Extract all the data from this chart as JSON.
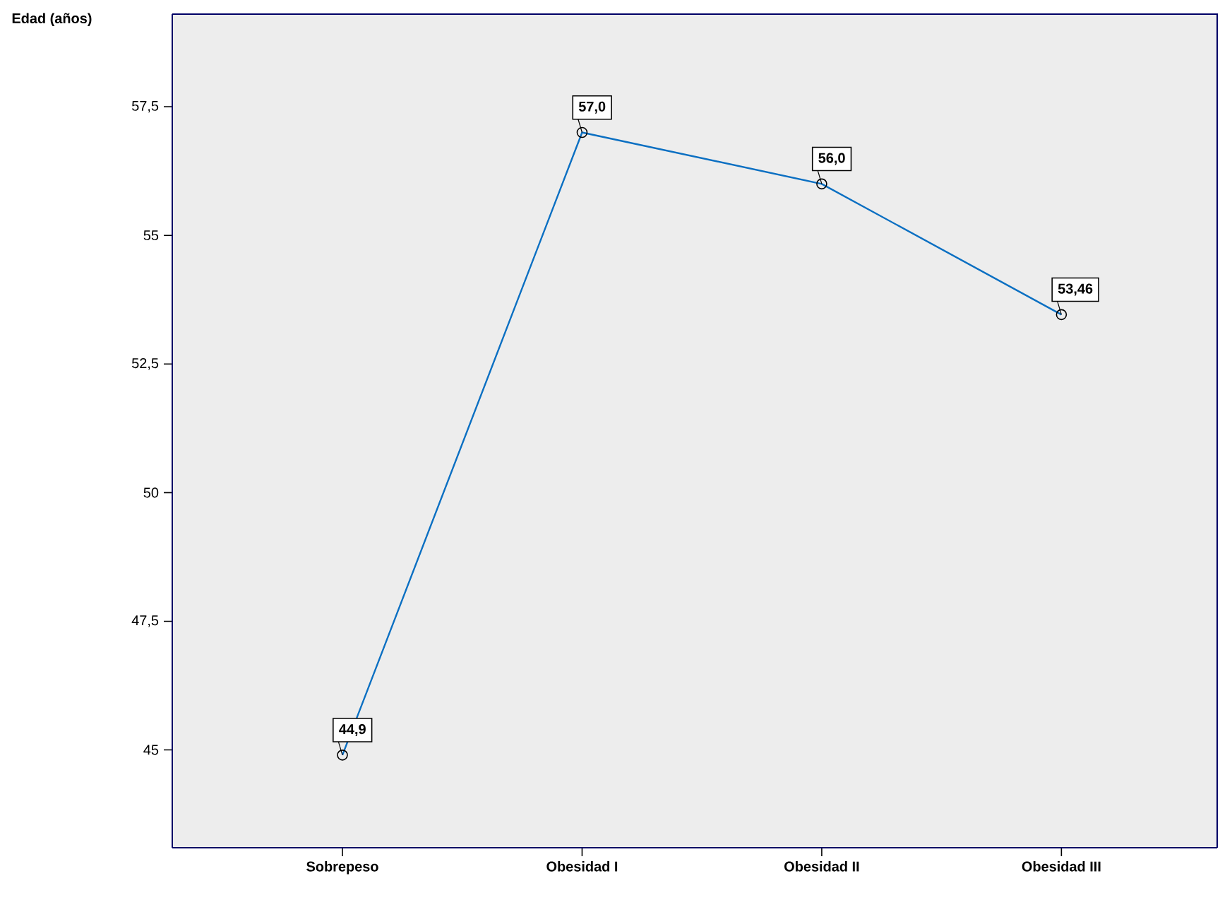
{
  "chart_data": {
    "type": "line",
    "ylabel": "Edad (años)",
    "categories": [
      "Sobrepeso",
      "Obesidad I",
      "Obesidad II",
      "Obesidad III"
    ],
    "values": [
      44.9,
      57.0,
      56.0,
      53.46
    ],
    "value_labels": [
      "44,9",
      "57,0",
      "56,0",
      "53,46"
    ],
    "color": "#0a6fc2",
    "marker": "circle",
    "ylim": [
      43.1,
      59.3
    ],
    "yticks": [
      {
        "value": 45,
        "label": "45"
      },
      {
        "value": 47.5,
        "label": "47,5"
      },
      {
        "value": 50,
        "label": "50"
      },
      {
        "value": 52.5,
        "label": "52,5"
      },
      {
        "value": 55,
        "label": "55"
      },
      {
        "value": 57.5,
        "label": "57,5"
      }
    ]
  }
}
